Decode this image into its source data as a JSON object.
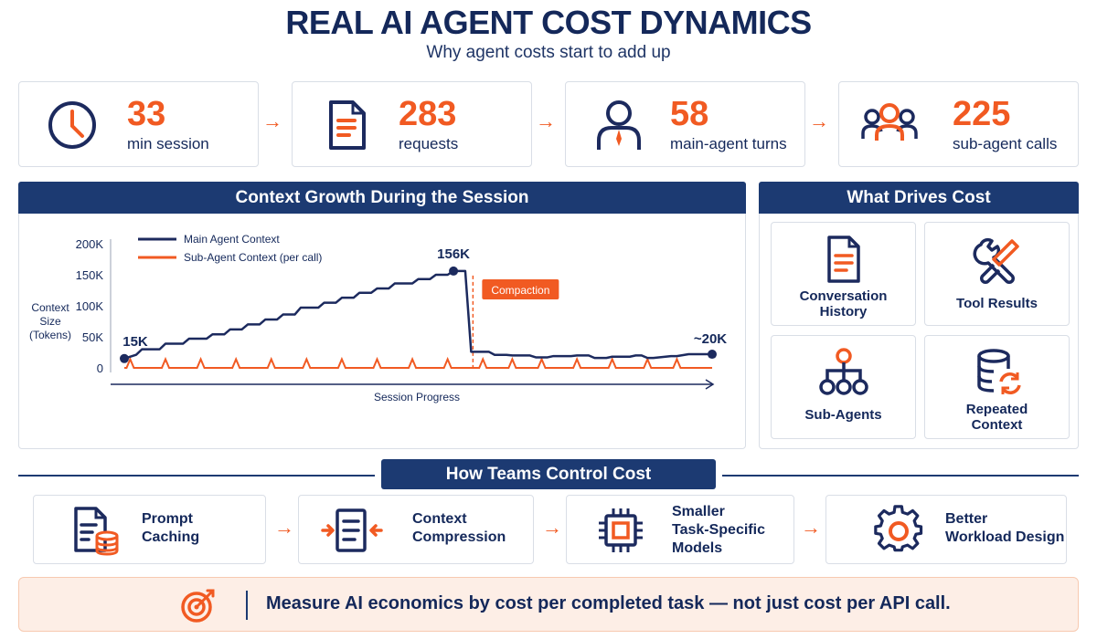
{
  "header": {
    "title": "REAL AI AGENT COST DYNAMICS",
    "subtitle": "Why agent costs start to add up"
  },
  "stats": [
    {
      "value": "33",
      "label": "min session",
      "icon": "clock-icon"
    },
    {
      "value": "283",
      "label": "requests",
      "icon": "document-icon"
    },
    {
      "value": "58",
      "label": "main-agent turns",
      "icon": "person-icon"
    },
    {
      "value": "225",
      "label": "sub-agent calls",
      "icon": "group-icon"
    }
  ],
  "context_panel": {
    "title": "Context Growth During the Session"
  },
  "chart_data": {
    "type": "line",
    "title": "Context Growth During the Session",
    "xlabel": "Session Progress",
    "ylabel": "Context Size (Tokens)",
    "ylabel_lines": [
      "Context",
      "Size",
      "(Tokens)"
    ],
    "ylim": [
      0,
      200000
    ],
    "y_ticks": [
      0,
      50000,
      100000,
      150000,
      200000
    ],
    "y_tick_labels": [
      "0",
      "50K",
      "100K",
      "150K",
      "200K"
    ],
    "legend_position": "top-left",
    "series": [
      {
        "name": "Main Agent Context",
        "color": "#1c2a5e",
        "x": [
          0,
          2,
          3,
          6,
          7,
          10,
          11,
          14,
          15,
          17,
          18,
          20,
          21,
          23,
          24,
          26,
          27,
          29,
          30,
          33,
          34,
          36,
          37,
          39,
          40,
          42,
          43,
          45,
          46,
          49,
          50,
          52,
          53,
          55,
          56,
          58,
          59,
          62,
          63,
          65,
          66,
          69,
          70,
          72,
          73,
          76,
          77,
          79,
          80,
          82,
          83,
          86,
          87,
          88,
          89,
          90,
          93,
          94,
          96,
          97,
          100
        ],
        "y": [
          15000,
          21000,
          30000,
          30000,
          39000,
          39000,
          47000,
          47000,
          54000,
          54000,
          62000,
          62000,
          70000,
          70000,
          78000,
          78000,
          86000,
          86000,
          97000,
          97000,
          105000,
          105000,
          113000,
          113000,
          121000,
          121000,
          128000,
          128000,
          136000,
          136000,
          143000,
          143000,
          150000,
          150000,
          156000,
          156000,
          26000,
          26000,
          21000,
          21000,
          20000,
          20000,
          17000,
          17000,
          19000,
          19000,
          20000,
          20000,
          16000,
          16000,
          18000,
          18000,
          20000,
          20000,
          16000,
          16000,
          19000,
          19000,
          22000,
          22000,
          22000
        ]
      },
      {
        "name": "Sub-Agent Context (per call)",
        "color": "#f15a22",
        "peak_x": [
          1,
          7,
          13,
          19,
          25,
          31,
          37,
          43,
          49,
          55,
          61,
          66,
          71,
          77,
          83,
          89,
          94
        ],
        "peak_y": 14000,
        "base_y": 0
      }
    ],
    "annotations": [
      {
        "text": "15K",
        "x": 0,
        "y": 15000
      },
      {
        "text": "156K",
        "x": 56,
        "y": 156000
      },
      {
        "text": "~20K",
        "x": 100,
        "y": 22000
      },
      {
        "text": "Compaction",
        "x": 59
      }
    ]
  },
  "drivers_panel": {
    "title": "What Drives Cost",
    "items": [
      {
        "label_lines": [
          "Conversation",
          "History"
        ],
        "icon": "document-icon"
      },
      {
        "label_lines": [
          "Tool Results"
        ],
        "icon": "tools-icon"
      },
      {
        "label_lines": [
          "Sub-Agents"
        ],
        "icon": "hierarchy-icon"
      },
      {
        "label_lines": [
          "Repeated",
          "Context"
        ],
        "icon": "database-refresh-icon"
      }
    ]
  },
  "controls": {
    "title": "How Teams Control Cost",
    "items": [
      {
        "label_lines": [
          "Prompt",
          "Caching"
        ],
        "icon": "document-database-icon"
      },
      {
        "label_lines": [
          "Context",
          "Compression"
        ],
        "icon": "compress-icon"
      },
      {
        "label_lines": [
          "Smaller",
          "Task-Specific",
          "Models"
        ],
        "icon": "chip-icon"
      },
      {
        "label_lines": [
          "Better",
          "Workload Design"
        ],
        "icon": "gear-icon"
      }
    ]
  },
  "banner": {
    "text": "Measure AI economics by cost per completed task — not just cost per API call.",
    "icon": "target-icon"
  },
  "colors": {
    "navy": "#1c3a72",
    "dark_navy": "#14285a",
    "orange": "#f15a22",
    "banner_bg": "#fdeee6"
  }
}
